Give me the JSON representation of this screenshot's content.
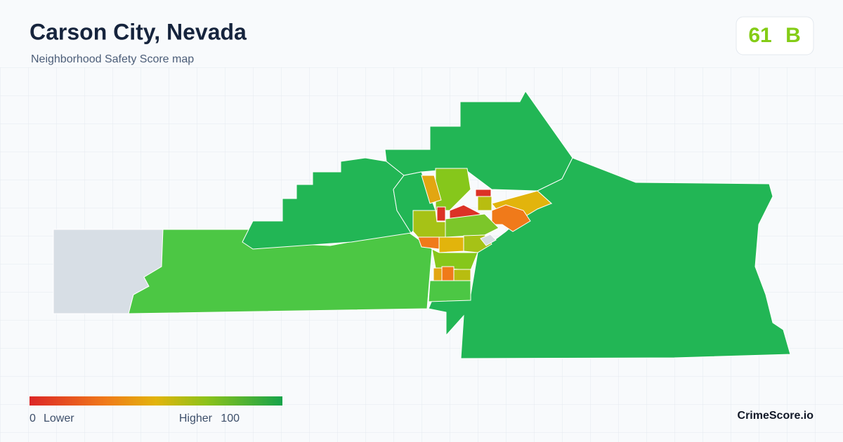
{
  "header": {
    "title": "Carson City, Nevada",
    "subtitle": "Neighborhood Safety Score map"
  },
  "score": {
    "value": 61,
    "grade": "B"
  },
  "legend": {
    "min": 0,
    "min_label": "Lower",
    "max_label": "Higher",
    "max": 100
  },
  "brand": "CrimeScore.io"
}
